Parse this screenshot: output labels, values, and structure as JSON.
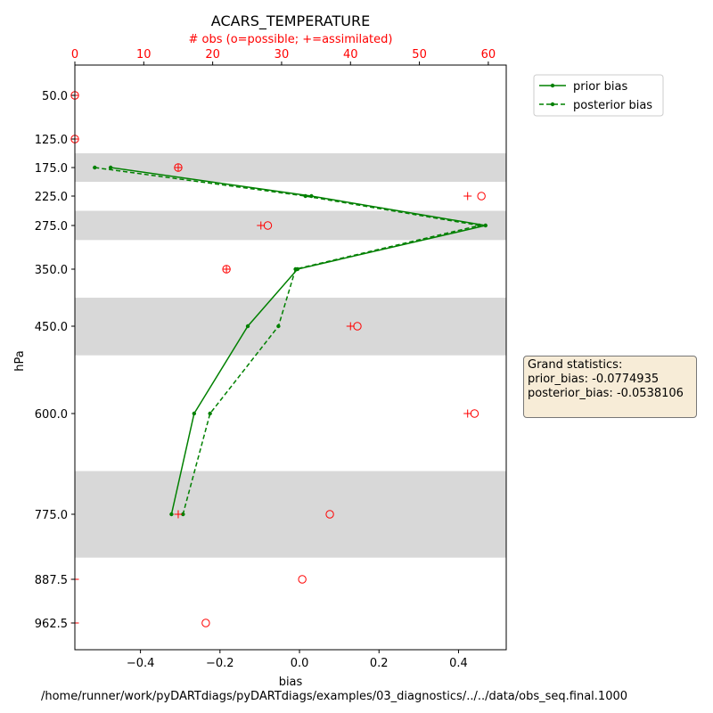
{
  "chart_data": {
    "type": "line",
    "title": "ACARS_TEMPERATURE",
    "top_axis_label": "# obs (o=possible; +=assimilated)",
    "xlabel": "bias",
    "ylabel": "hPa",
    "footer": "/home/runner/work/pyDARTdiags/pyDARTdiags/examples/03_diagnostics/../../data/obs_seq.final.1000",
    "xlim": [
      -0.565,
      0.52
    ],
    "x_ticks": [
      "−0.4",
      "−0.2",
      "0.0",
      "0.2",
      "0.4"
    ],
    "x_tick_values": [
      -0.4,
      -0.2,
      0.0,
      0.2,
      0.4
    ],
    "top_xlim": [
      0,
      62.6
    ],
    "top_ticks": [
      "0",
      "10",
      "20",
      "30",
      "40",
      "50",
      "60"
    ],
    "top_tick_values": [
      0,
      10,
      20,
      30,
      40,
      50,
      60
    ],
    "y_ticks": [
      "50.0",
      "125.0",
      "175.0",
      "225.0",
      "275.0",
      "350.0",
      "450.0",
      "600.0",
      "775.0",
      "887.5",
      "962.5"
    ],
    "y_tick_values": [
      50.0,
      125.0,
      175.0,
      225.0,
      275.0,
      350.0,
      450.0,
      600.0,
      775.0,
      887.5,
      962.5
    ],
    "ylim": [
      1010,
      15
    ],
    "y_inverted": true,
    "shaded_bands": [
      [
        150,
        200
      ],
      [
        250,
        300
      ],
      [
        400,
        500
      ],
      [
        700,
        850
      ]
    ],
    "band_color": "#d8d8d8",
    "series": [
      {
        "name": "prior bias",
        "style": "solid",
        "color": "#008000",
        "points": [
          [
            -0.475,
            175.0
          ],
          [
            0.03,
            225.0
          ],
          [
            0.468,
            275.0
          ],
          [
            -0.005,
            350.0
          ],
          [
            -0.13,
            450.0
          ],
          [
            -0.265,
            600.0
          ],
          [
            -0.322,
            775.0
          ]
        ]
      },
      {
        "name": "posterior bias",
        "style": "dashed",
        "color": "#008000",
        "points": [
          [
            -0.515,
            175.0
          ],
          [
            0.015,
            225.0
          ],
          [
            0.452,
            275.0
          ],
          [
            -0.01,
            350.0
          ],
          [
            -0.053,
            450.0
          ],
          [
            -0.225,
            600.0
          ],
          [
            -0.293,
            775.0
          ]
        ]
      }
    ],
    "obs_possible": [
      [
        0,
        50.0
      ],
      [
        0,
        125.0
      ],
      [
        15,
        175.0
      ],
      [
        59,
        225.0
      ],
      [
        28,
        275.0
      ],
      [
        22,
        350.0
      ],
      [
        41,
        450.0
      ],
      [
        58,
        600.0
      ],
      [
        37,
        775.0
      ],
      [
        33,
        887.5
      ],
      [
        19,
        962.5
      ]
    ],
    "obs_assimilated": [
      [
        0,
        50.0
      ],
      [
        0,
        125.0
      ],
      [
        15,
        175.0
      ],
      [
        57,
        225.0
      ],
      [
        27,
        275.0
      ],
      [
        22,
        350.0
      ],
      [
        40,
        450.0
      ],
      [
        57,
        600.0
      ],
      [
        15,
        775.0
      ],
      [
        0,
        887.5
      ],
      [
        0,
        962.5
      ]
    ],
    "obs_color": "#ff0000",
    "legend": {
      "placement": "outside-upper-right",
      "entries": [
        "prior bias",
        "posterior bias"
      ]
    },
    "grand_statistics": {
      "heading": "Grand statistics:",
      "prior_bias": "prior_bias: -0.0774935",
      "posterior_bias": "posterior_bias: -0.0538106"
    }
  }
}
